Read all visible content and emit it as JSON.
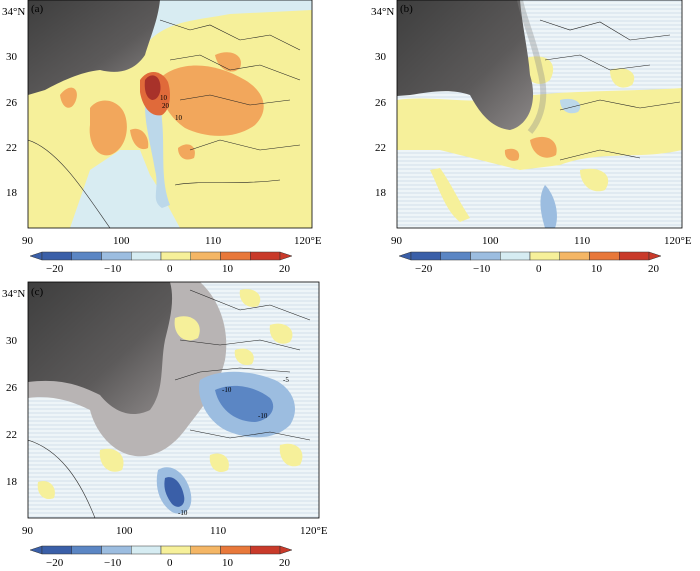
{
  "panels": [
    {
      "id": "a",
      "tag": "(a)",
      "lat_ticks": [
        "34°N",
        "30",
        "26",
        "22",
        "18"
      ],
      "lon_ticks": [
        "90",
        "100",
        "110",
        "120°E"
      ],
      "contour_labels": [
        "10",
        "20",
        "10"
      ]
    },
    {
      "id": "b",
      "tag": "(b)",
      "lat_ticks": [
        "34°N",
        "30",
        "26",
        "22",
        "18"
      ],
      "lon_ticks": [
        "90",
        "100",
        "110",
        "120°E"
      ],
      "contour_labels": []
    },
    {
      "id": "c",
      "tag": "(c)",
      "lat_ticks": [
        "34°N",
        "30",
        "26",
        "22",
        "18"
      ],
      "lon_ticks": [
        "90",
        "100",
        "110",
        "120°E"
      ],
      "contour_labels": [
        "-10",
        "-10",
        "-5",
        "-10"
      ]
    }
  ],
  "colorbar": {
    "tick_labels": [
      "−20",
      "−10",
      "0",
      "10",
      "20"
    ],
    "colors": [
      "#3a5fa8",
      "#5b86c4",
      "#9cbde0",
      "#d6ecf2",
      "#f6f09a",
      "#f4b665",
      "#e8783a",
      "#c93a2a"
    ]
  },
  "colors": {
    "terrain": "#5a5a5a",
    "terrain_light": "#a9a6a6",
    "ocean_lines": "#c9dbe7"
  }
}
